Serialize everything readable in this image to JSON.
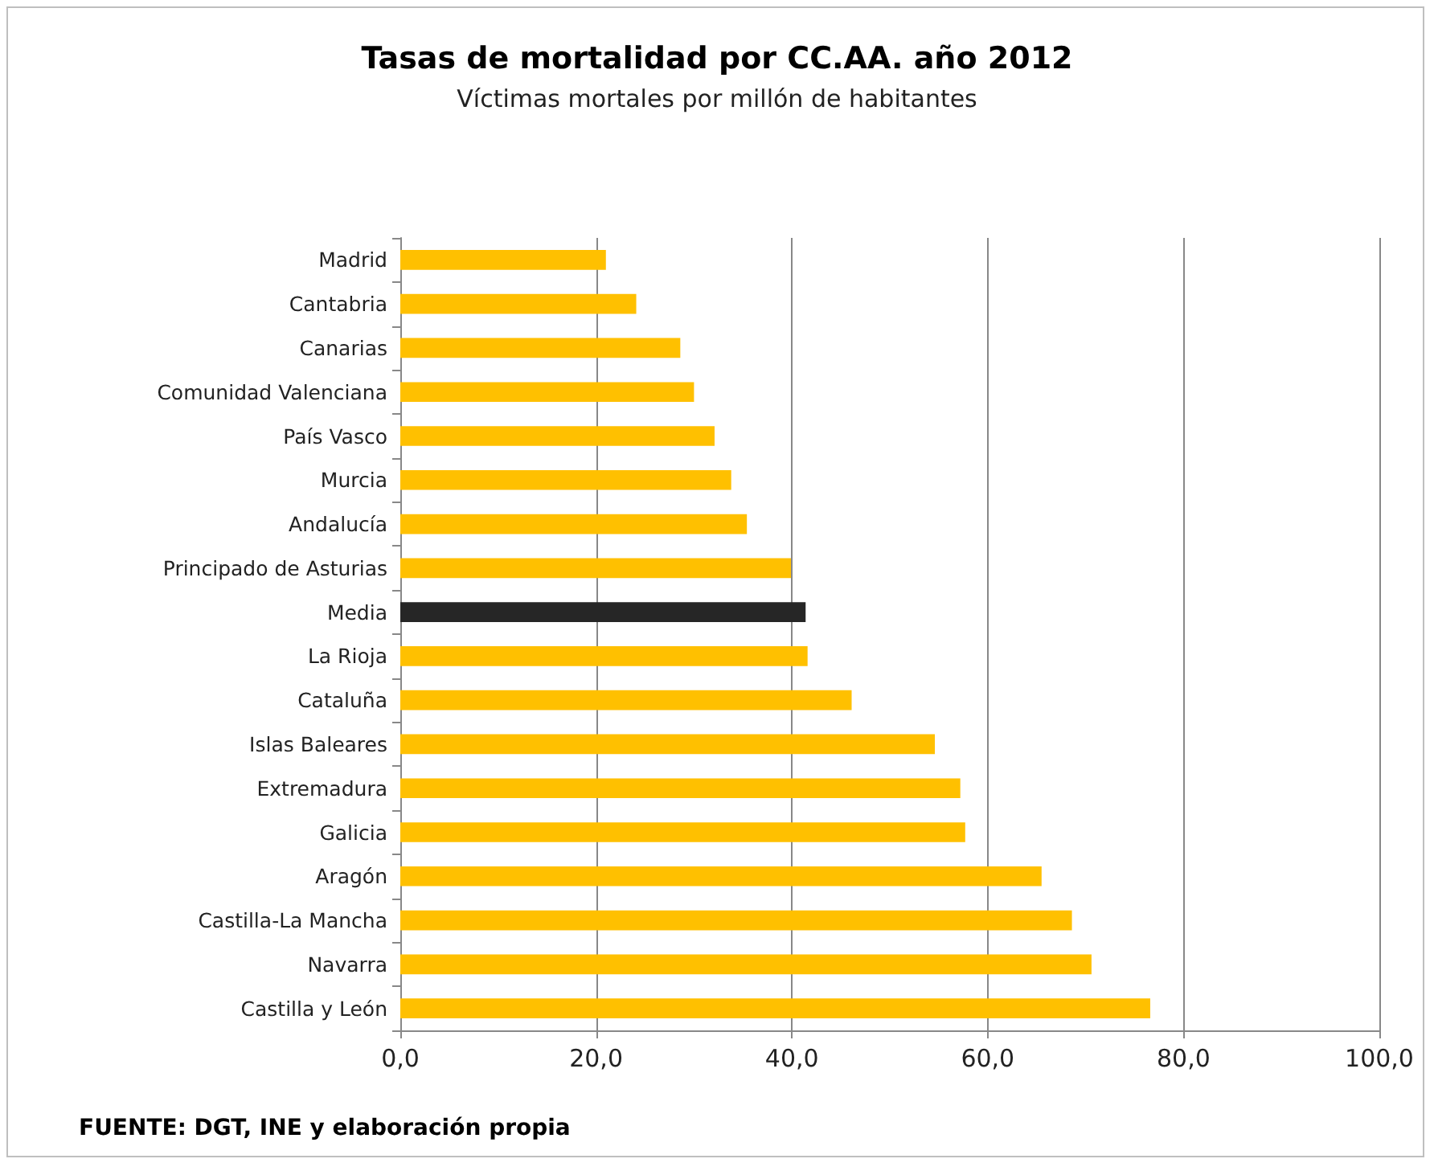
{
  "chart_data": {
    "type": "bar",
    "orientation": "horizontal",
    "title": "Tasas de mortalidad por CC.AA. año 2012",
    "subtitle": "Víctimas mortales por millón de habitantes",
    "categories": [
      "Madrid",
      "Cantabria",
      "Canarias",
      "Comunidad Valenciana",
      "País Vasco",
      "Murcia",
      "Andalucía",
      "Principado de Asturias",
      "Media",
      "La Rioja",
      "Cataluña",
      "Islas Baleares",
      "Extremadura",
      "Galicia",
      "Aragón",
      "Castilla-La Mancha",
      "Navarra",
      "Castilla y León"
    ],
    "values": [
      21.0,
      24.1,
      28.6,
      30.0,
      32.1,
      33.8,
      35.4,
      39.9,
      41.4,
      41.6,
      46.1,
      54.6,
      57.2,
      57.7,
      65.5,
      68.6,
      70.6,
      76.6
    ],
    "colors": [
      "#ffc000",
      "#ffc000",
      "#ffc000",
      "#ffc000",
      "#ffc000",
      "#ffc000",
      "#ffc000",
      "#ffc000",
      "#262626",
      "#ffc000",
      "#ffc000",
      "#ffc000",
      "#ffc000",
      "#ffc000",
      "#ffc000",
      "#ffc000",
      "#ffc000",
      "#ffc000"
    ],
    "xlim": [
      0,
      100
    ],
    "xticks": [
      {
        "value": 0,
        "label": "0,0"
      },
      {
        "value": 20,
        "label": "20,0"
      },
      {
        "value": 40,
        "label": "40,0"
      },
      {
        "value": 60,
        "label": "60,0"
      },
      {
        "value": 80,
        "label": "80,0"
      },
      {
        "value": 100,
        "label": "100,0"
      }
    ],
    "grid": "x",
    "annotations": [
      "FUENTE: DGT, INE y elaboración propia"
    ]
  }
}
